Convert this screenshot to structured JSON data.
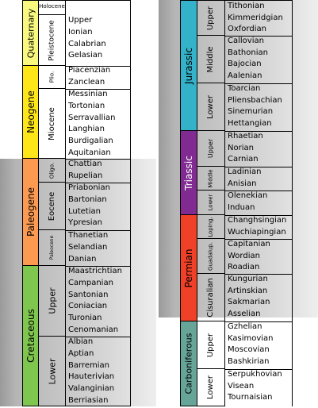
{
  "colors": {
    "quaternary": "#f9f97f",
    "neogene": "#ffe619",
    "paleogene": "#fd9a52",
    "cretaceous": "#7fc64e",
    "jurassic": "#34b2c9",
    "triassic": "#812b92",
    "permian": "#f04028",
    "carboniferous": "#67a599",
    "shade": "#c8c8c8"
  },
  "left": {
    "periods": [
      {
        "id": "quaternary",
        "label": "Quaternary",
        "color": "#f9f97f"
      },
      {
        "id": "neogene",
        "label": "Neogene",
        "color": "#ffe619"
      },
      {
        "id": "paleogene",
        "label": "Paleogene",
        "color": "#fd9a52"
      },
      {
        "id": "cretaceous",
        "label": "Cretaceous",
        "color": "#7fc64e"
      }
    ],
    "epochs": [
      {
        "label": "Holocene"
      },
      {
        "label": "Pleistocene"
      },
      {
        "label": "Plio."
      },
      {
        "label": "Miocene"
      },
      {
        "label": "Oligo."
      },
      {
        "label": "Eocene"
      },
      {
        "label": "Paleocene"
      },
      {
        "label": "Upper"
      },
      {
        "label": "Lower"
      }
    ],
    "stages": [
      "Upper",
      "Ionian",
      "Calabrian",
      "Gelasian",
      "Piacenzian",
      "Zanclean",
      "Messinian",
      "Tortonian",
      "Serravallian",
      "Langhian",
      "Burdigalian",
      "Aquitanian",
      "Chattian",
      "Rupelian",
      "Priabonian",
      "Bartonian",
      "Lutetian",
      "Ypresian",
      "Thanetian",
      "Selandian",
      "Danian",
      "Maastrichtian",
      "Campanian",
      "Santonian",
      "Coniacian",
      "Turonian",
      "Cenomanian",
      "Albian",
      "Aptian",
      "Barremian",
      "Hauterivian",
      "Valanginian",
      "Berriasian"
    ]
  },
  "right": {
    "periods": [
      {
        "id": "jurassic",
        "label": "Jurassic",
        "color": "#34b2c9"
      },
      {
        "id": "triassic",
        "label": "Triassic",
        "color": "#812b92"
      },
      {
        "id": "permian",
        "label": "Permian",
        "color": "#f04028"
      },
      {
        "id": "carboniferous",
        "label": "Carboniferous",
        "color": "#67a599"
      }
    ],
    "epochs": [
      {
        "label": "Upper"
      },
      {
        "label": "Middle"
      },
      {
        "label": "Lower"
      },
      {
        "label": "Upper"
      },
      {
        "label": "Middle"
      },
      {
        "label": "Lower"
      },
      {
        "label": "Loping."
      },
      {
        "label": "Guadalup."
      },
      {
        "label": "Cisuralian"
      },
      {
        "label": "Upper"
      },
      {
        "label": "Lower"
      }
    ],
    "stages": [
      "Tithonian",
      "Kimmeridgian",
      "Oxfordian",
      "Callovian",
      "Bathonian",
      "Bajocian",
      "Aalenian",
      "Toarcian",
      "Pliensbachian",
      "Sinemurian",
      "Hettangian",
      "Rhaetian",
      "Norian",
      "Carnian",
      "Ladinian",
      "Anisian",
      "Olenekian",
      "Induan",
      "Changhsingian",
      "Wuchiapingian",
      "Capitanian",
      "Wordian",
      "Roadian",
      "Kungurian",
      "Artinskian",
      "Sakmarian",
      "Asselian",
      "Gzhelian",
      "Kasimovian",
      "Moscovian",
      "Bashkirian",
      "Serpukhovian",
      "Visean",
      "Tournaisian"
    ]
  }
}
